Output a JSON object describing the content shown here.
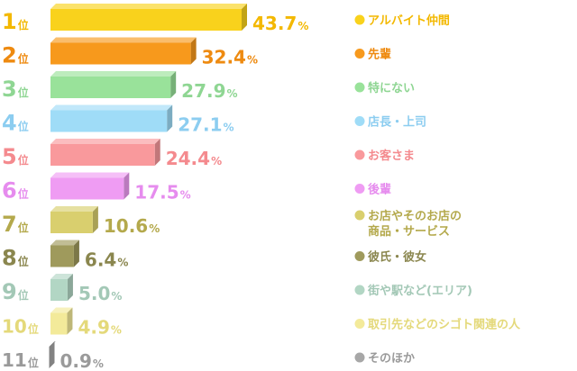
{
  "chart_data": {
    "type": "bar",
    "orientation": "horizontal",
    "rank_suffix": "位",
    "percent_suffix": "%",
    "xlim": [
      0,
      43.7
    ],
    "grid": false,
    "legend_position": "right",
    "items": [
      {
        "rank": "1",
        "value": 43.7,
        "label": "43.7",
        "legend": [
          "アルバイト仲間"
        ],
        "color": "#f9d21c",
        "text_color": "#f3b800"
      },
      {
        "rank": "2",
        "value": 32.4,
        "label": "32.4",
        "legend": [
          "先輩"
        ],
        "color": "#f7991c",
        "text_color": "#ee8a10"
      },
      {
        "rank": "3",
        "value": 27.9,
        "label": "27.9",
        "legend": [
          "特にない"
        ],
        "color": "#99e29a",
        "text_color": "#8fd693"
      },
      {
        "rank": "4",
        "value": 27.1,
        "label": "27.1",
        "legend": [
          "店長・上司"
        ],
        "color": "#9fdcf7",
        "text_color": "#8ccdf0"
      },
      {
        "rank": "5",
        "value": 24.4,
        "label": "24.4",
        "legend": [
          "お客さま"
        ],
        "color": "#f9999c",
        "text_color": "#f48a8e"
      },
      {
        "rank": "6",
        "value": 17.5,
        "label": "17.5",
        "legend": [
          "後輩"
        ],
        "color": "#ef9cf3",
        "text_color": "#e68cee"
      },
      {
        "rank": "7",
        "value": 10.6,
        "label": "10.6",
        "legend": [
          "お店やそのお店の",
          "商品・サービス"
        ],
        "color": "#d9cf6e",
        "text_color": "#b4a94c"
      },
      {
        "rank": "8",
        "value": 6.4,
        "label": "6.4",
        "legend": [
          "彼氏・彼女"
        ],
        "color": "#9f9a5c",
        "text_color": "#8a864e"
      },
      {
        "rank": "9",
        "value": 5.0,
        "label": "5.0",
        "legend": [
          "街や駅など(エリア)"
        ],
        "color": "#b2d6c4",
        "text_color": "#a3c8b6"
      },
      {
        "rank": "10",
        "value": 4.9,
        "label": "4.9",
        "legend": [
          "取引先などのシゴト関連の人"
        ],
        "color": "#f3ea9a",
        "text_color": "#e4d97a"
      },
      {
        "rank": "11",
        "value": 0.9,
        "label": "0.9",
        "legend": [
          "そのほか"
        ],
        "color": "#a7a7a7",
        "text_color": "#9a9a9a"
      }
    ]
  }
}
